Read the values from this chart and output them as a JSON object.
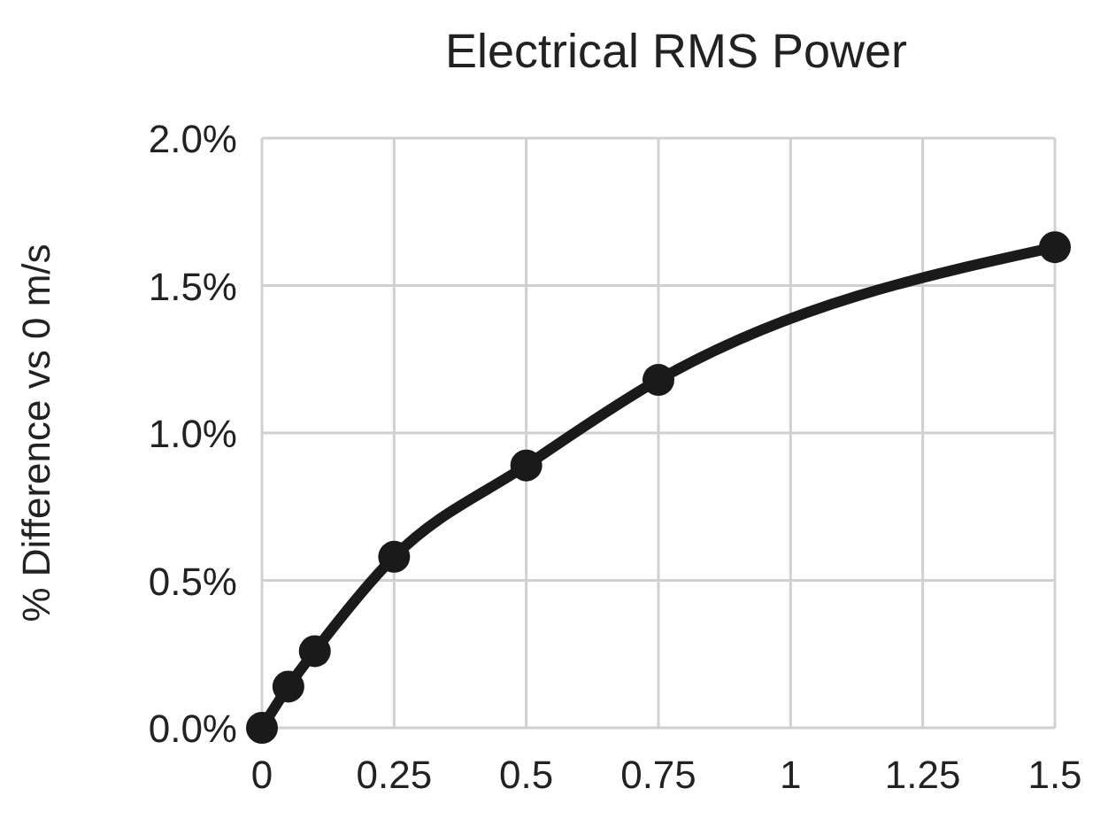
{
  "chart_data": {
    "type": "line",
    "title": "Electrical RMS Power",
    "ylabel": "% Difference vs 0 m/s",
    "x": [
      0,
      0.05,
      0.1,
      0.25,
      0.5,
      0.75,
      1.5
    ],
    "series": [
      {
        "color": "#1a1a1a",
        "values": [
          0,
          0.14,
          0.26,
          0.58,
          0.89,
          1.18,
          1.63
        ]
      }
    ],
    "xlim": [
      0,
      1.5
    ],
    "xticks": [
      0,
      0.25,
      0.5,
      0.75,
      1,
      1.25,
      1.5
    ],
    "ylim": [
      0,
      2
    ],
    "yticks": [
      {
        "value": 0,
        "label": "0.0%"
      },
      {
        "value": 0.5,
        "label": "0.5%"
      },
      {
        "value": 1,
        "label": "1.0%"
      },
      {
        "value": 1.5,
        "label": "1.5%"
      },
      {
        "value": 2,
        "label": "2.0%"
      }
    ],
    "grid": true,
    "marker": "circle",
    "line_style": "solid"
  }
}
